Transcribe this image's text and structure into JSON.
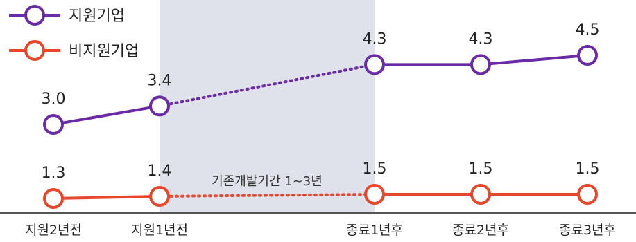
{
  "chart_data": {
    "type": "line",
    "categories": [
      "지원2년전",
      "지원1년전",
      "종료1년후",
      "종료2년후",
      "종료3년후"
    ],
    "series": [
      {
        "name": "지원기업",
        "values": [
          3.0,
          3.4,
          4.3,
          4.3,
          4.5
        ],
        "labels": [
          "3.0",
          "3.4",
          "4.3",
          "4.3",
          "4.5"
        ],
        "color": "#6a2ca6"
      },
      {
        "name": "비지원기업",
        "values": [
          1.3,
          1.4,
          1.5,
          1.5,
          1.5
        ],
        "labels": [
          "1.3",
          "1.4",
          "1.5",
          "1.5",
          "1.5"
        ],
        "color": "#e8472b"
      }
    ],
    "annotation": "기존개발기간 1~3년",
    "shaded_span": [
      "지원1년전",
      "종료1년후"
    ],
    "dotted_span": [
      "지원1년전",
      "종료1년후"
    ],
    "shade_color": "#dfe2ea",
    "axis_color": "#555555",
    "grid": false,
    "legend_position": "top-left"
  }
}
